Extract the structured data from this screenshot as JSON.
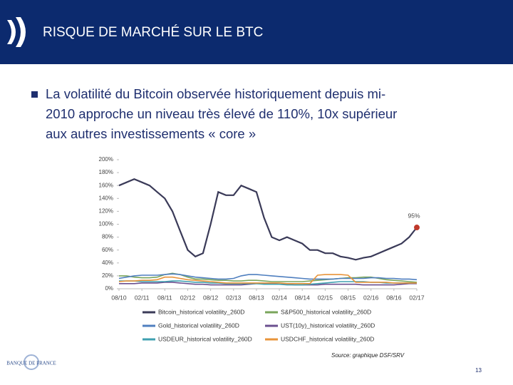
{
  "header": {
    "title": "RISQUE DE MARCHÉ SUR LE BTC"
  },
  "bullet": {
    "lines": [
      "La volatilité du Bitcoin observée historiquement depuis mi-",
      "2010  approche un niveau très élevé de  110%, 10x supérieur",
      "aux autres investissements « core »"
    ]
  },
  "source": "Source: graphique DSF/SRV",
  "page_number": "13",
  "logo": "BANQUE DE FRANCE",
  "chart_data": {
    "type": "line",
    "x": [
      "08/10",
      "10/10",
      "12/10",
      "02/11",
      "04/11",
      "06/11",
      "08/11",
      "10/11",
      "12/11",
      "02/12",
      "04/12",
      "06/12",
      "08/12",
      "10/12",
      "12/12",
      "02/13",
      "04/13",
      "06/13",
      "08/13",
      "10/13",
      "12/13",
      "02/14",
      "04/14",
      "06/14",
      "08/14",
      "10/14",
      "12/14",
      "02/15",
      "04/15",
      "06/15",
      "08/15",
      "10/15",
      "12/15",
      "02/16",
      "04/16",
      "06/16",
      "08/16",
      "10/16",
      "12/16",
      "02/17"
    ],
    "xticks": [
      "08/10",
      "02/11",
      "08/11",
      "02/12",
      "08/12",
      "02/13",
      "08/13",
      "02/14",
      "08/14",
      "02/15",
      "08/15",
      "02/16",
      "08/16",
      "02/17"
    ],
    "ylim": [
      0,
      200
    ],
    "yticks": [
      {
        "value": 0,
        "label": "0%"
      },
      {
        "value": 20,
        "label": "20%"
      },
      {
        "value": 40,
        "label": "40%"
      },
      {
        "value": 60,
        "label": "60%"
      },
      {
        "value": 80,
        "label": "80%"
      },
      {
        "value": 100,
        "label": "100%"
      },
      {
        "value": 120,
        "label": "120%"
      },
      {
        "value": 140,
        "label": "140%"
      },
      {
        "value": 160,
        "label": "160%"
      },
      {
        "value": 180,
        "label": "180%"
      },
      {
        "value": 200,
        "label": "200%"
      }
    ],
    "series": [
      {
        "name": "Bitcoin_historical volatility_260D",
        "color": "#3a3a58",
        "values": [
          160,
          165,
          170,
          165,
          160,
          150,
          140,
          120,
          90,
          60,
          50,
          55,
          100,
          150,
          145,
          145,
          160,
          155,
          150,
          110,
          80,
          75,
          80,
          75,
          70,
          60,
          60,
          55,
          55,
          50,
          48,
          45,
          48,
          50,
          55,
          60,
          65,
          70,
          80,
          95
        ],
        "value_labels": [
          null,
          null,
          null,
          null,
          null,
          null,
          null,
          null,
          null,
          null,
          null,
          null,
          null,
          null,
          null,
          null,
          null,
          null,
          null,
          null,
          null,
          null,
          null,
          null,
          null,
          null,
          null,
          null,
          null,
          null,
          null,
          null,
          null,
          null,
          null,
          null,
          null,
          null,
          null,
          "95%"
        ]
      },
      {
        "name": "S&P500_historical volatility_260D",
        "color": "#7aa55b",
        "values": [
          20,
          20,
          18,
          17,
          17,
          18,
          22,
          24,
          22,
          18,
          15,
          15,
          14,
          13,
          13,
          12,
          12,
          13,
          13,
          12,
          11,
          11,
          11,
          11,
          11,
          12,
          13,
          14,
          15,
          16,
          17,
          17,
          18,
          18,
          16,
          14,
          13,
          12,
          11,
          10
        ]
      },
      {
        "name": "Gold_historical volatility_260D",
        "color": "#4f7fbf",
        "values": [
          16,
          18,
          20,
          21,
          21,
          21,
          22,
          23,
          22,
          20,
          18,
          17,
          16,
          15,
          15,
          16,
          20,
          22,
          22,
          21,
          20,
          19,
          18,
          17,
          16,
          15,
          15,
          15,
          15,
          16,
          16,
          16,
          16,
          17,
          17,
          16,
          16,
          15,
          15,
          14
        ]
      },
      {
        "name": "UST(10y)_historical volatility_260D",
        "color": "#6b4f8f",
        "values": [
          8,
          8,
          8,
          9,
          9,
          9,
          10,
          10,
          9,
          8,
          7,
          7,
          6,
          6,
          6,
          6,
          6,
          7,
          8,
          8,
          8,
          7,
          7,
          6,
          6,
          6,
          6,
          7,
          7,
          7,
          7,
          7,
          6,
          6,
          6,
          6,
          6,
          7,
          8,
          8
        ]
      },
      {
        "name": "USDEUR_historical volatility_260D",
        "color": "#3fa0b0",
        "values": [
          12,
          12,
          12,
          11,
          11,
          11,
          11,
          12,
          12,
          11,
          10,
          10,
          9,
          9,
          8,
          8,
          8,
          8,
          8,
          7,
          7,
          7,
          6,
          6,
          6,
          7,
          8,
          9,
          10,
          11,
          11,
          11,
          11,
          10,
          10,
          9,
          9,
          9,
          9,
          9
        ]
      },
      {
        "name": "USDCHF_historical volatility_260D",
        "color": "#e8943a",
        "values": [
          11,
          12,
          12,
          13,
          13,
          14,
          18,
          18,
          16,
          14,
          13,
          12,
          11,
          10,
          9,
          9,
          9,
          9,
          9,
          9,
          9,
          9,
          8,
          8,
          8,
          8,
          21,
          22,
          22,
          22,
          21,
          10,
          10,
          10,
          10,
          10,
          9,
          9,
          9,
          9
        ]
      }
    ],
    "grid": false
  }
}
